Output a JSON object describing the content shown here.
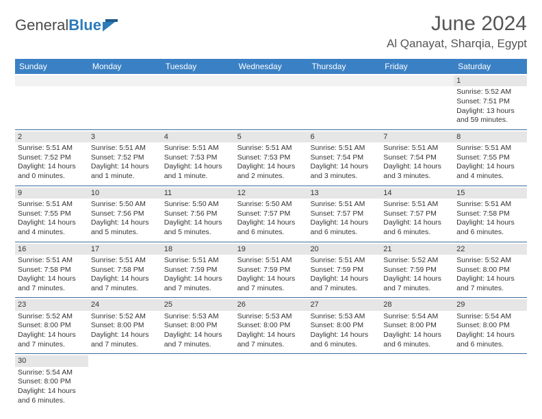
{
  "logo": {
    "text1": "General",
    "text2": "Blue"
  },
  "title": "June 2024",
  "location": "Al Qanayat, Sharqia, Egypt",
  "colors": {
    "header_bg": "#3a80c4",
    "header_text": "#ffffff",
    "daynum_bg": "#e6e6e6",
    "week_border": "#3a6a9a",
    "logo_blue": "#2b7bbb"
  },
  "day_names": [
    "Sunday",
    "Monday",
    "Tuesday",
    "Wednesday",
    "Thursday",
    "Friday",
    "Saturday"
  ],
  "weeks": [
    [
      {
        "n": "",
        "sr": "",
        "ss": "",
        "d1": "",
        "d2": ""
      },
      {
        "n": "",
        "sr": "",
        "ss": "",
        "d1": "",
        "d2": ""
      },
      {
        "n": "",
        "sr": "",
        "ss": "",
        "d1": "",
        "d2": ""
      },
      {
        "n": "",
        "sr": "",
        "ss": "",
        "d1": "",
        "d2": ""
      },
      {
        "n": "",
        "sr": "",
        "ss": "",
        "d1": "",
        "d2": ""
      },
      {
        "n": "",
        "sr": "",
        "ss": "",
        "d1": "",
        "d2": ""
      },
      {
        "n": "1",
        "sr": "Sunrise: 5:52 AM",
        "ss": "Sunset: 7:51 PM",
        "d1": "Daylight: 13 hours",
        "d2": "and 59 minutes."
      }
    ],
    [
      {
        "n": "2",
        "sr": "Sunrise: 5:51 AM",
        "ss": "Sunset: 7:52 PM",
        "d1": "Daylight: 14 hours",
        "d2": "and 0 minutes."
      },
      {
        "n": "3",
        "sr": "Sunrise: 5:51 AM",
        "ss": "Sunset: 7:52 PM",
        "d1": "Daylight: 14 hours",
        "d2": "and 1 minute."
      },
      {
        "n": "4",
        "sr": "Sunrise: 5:51 AM",
        "ss": "Sunset: 7:53 PM",
        "d1": "Daylight: 14 hours",
        "d2": "and 1 minute."
      },
      {
        "n": "5",
        "sr": "Sunrise: 5:51 AM",
        "ss": "Sunset: 7:53 PM",
        "d1": "Daylight: 14 hours",
        "d2": "and 2 minutes."
      },
      {
        "n": "6",
        "sr": "Sunrise: 5:51 AM",
        "ss": "Sunset: 7:54 PM",
        "d1": "Daylight: 14 hours",
        "d2": "and 3 minutes."
      },
      {
        "n": "7",
        "sr": "Sunrise: 5:51 AM",
        "ss": "Sunset: 7:54 PM",
        "d1": "Daylight: 14 hours",
        "d2": "and 3 minutes."
      },
      {
        "n": "8",
        "sr": "Sunrise: 5:51 AM",
        "ss": "Sunset: 7:55 PM",
        "d1": "Daylight: 14 hours",
        "d2": "and 4 minutes."
      }
    ],
    [
      {
        "n": "9",
        "sr": "Sunrise: 5:51 AM",
        "ss": "Sunset: 7:55 PM",
        "d1": "Daylight: 14 hours",
        "d2": "and 4 minutes."
      },
      {
        "n": "10",
        "sr": "Sunrise: 5:50 AM",
        "ss": "Sunset: 7:56 PM",
        "d1": "Daylight: 14 hours",
        "d2": "and 5 minutes."
      },
      {
        "n": "11",
        "sr": "Sunrise: 5:50 AM",
        "ss": "Sunset: 7:56 PM",
        "d1": "Daylight: 14 hours",
        "d2": "and 5 minutes."
      },
      {
        "n": "12",
        "sr": "Sunrise: 5:50 AM",
        "ss": "Sunset: 7:57 PM",
        "d1": "Daylight: 14 hours",
        "d2": "and 6 minutes."
      },
      {
        "n": "13",
        "sr": "Sunrise: 5:51 AM",
        "ss": "Sunset: 7:57 PM",
        "d1": "Daylight: 14 hours",
        "d2": "and 6 minutes."
      },
      {
        "n": "14",
        "sr": "Sunrise: 5:51 AM",
        "ss": "Sunset: 7:57 PM",
        "d1": "Daylight: 14 hours",
        "d2": "and 6 minutes."
      },
      {
        "n": "15",
        "sr": "Sunrise: 5:51 AM",
        "ss": "Sunset: 7:58 PM",
        "d1": "Daylight: 14 hours",
        "d2": "and 6 minutes."
      }
    ],
    [
      {
        "n": "16",
        "sr": "Sunrise: 5:51 AM",
        "ss": "Sunset: 7:58 PM",
        "d1": "Daylight: 14 hours",
        "d2": "and 7 minutes."
      },
      {
        "n": "17",
        "sr": "Sunrise: 5:51 AM",
        "ss": "Sunset: 7:58 PM",
        "d1": "Daylight: 14 hours",
        "d2": "and 7 minutes."
      },
      {
        "n": "18",
        "sr": "Sunrise: 5:51 AM",
        "ss": "Sunset: 7:59 PM",
        "d1": "Daylight: 14 hours",
        "d2": "and 7 minutes."
      },
      {
        "n": "19",
        "sr": "Sunrise: 5:51 AM",
        "ss": "Sunset: 7:59 PM",
        "d1": "Daylight: 14 hours",
        "d2": "and 7 minutes."
      },
      {
        "n": "20",
        "sr": "Sunrise: 5:51 AM",
        "ss": "Sunset: 7:59 PM",
        "d1": "Daylight: 14 hours",
        "d2": "and 7 minutes."
      },
      {
        "n": "21",
        "sr": "Sunrise: 5:52 AM",
        "ss": "Sunset: 7:59 PM",
        "d1": "Daylight: 14 hours",
        "d2": "and 7 minutes."
      },
      {
        "n": "22",
        "sr": "Sunrise: 5:52 AM",
        "ss": "Sunset: 8:00 PM",
        "d1": "Daylight: 14 hours",
        "d2": "and 7 minutes."
      }
    ],
    [
      {
        "n": "23",
        "sr": "Sunrise: 5:52 AM",
        "ss": "Sunset: 8:00 PM",
        "d1": "Daylight: 14 hours",
        "d2": "and 7 minutes."
      },
      {
        "n": "24",
        "sr": "Sunrise: 5:52 AM",
        "ss": "Sunset: 8:00 PM",
        "d1": "Daylight: 14 hours",
        "d2": "and 7 minutes."
      },
      {
        "n": "25",
        "sr": "Sunrise: 5:53 AM",
        "ss": "Sunset: 8:00 PM",
        "d1": "Daylight: 14 hours",
        "d2": "and 7 minutes."
      },
      {
        "n": "26",
        "sr": "Sunrise: 5:53 AM",
        "ss": "Sunset: 8:00 PM",
        "d1": "Daylight: 14 hours",
        "d2": "and 7 minutes."
      },
      {
        "n": "27",
        "sr": "Sunrise: 5:53 AM",
        "ss": "Sunset: 8:00 PM",
        "d1": "Daylight: 14 hours",
        "d2": "and 6 minutes."
      },
      {
        "n": "28",
        "sr": "Sunrise: 5:54 AM",
        "ss": "Sunset: 8:00 PM",
        "d1": "Daylight: 14 hours",
        "d2": "and 6 minutes."
      },
      {
        "n": "29",
        "sr": "Sunrise: 5:54 AM",
        "ss": "Sunset: 8:00 PM",
        "d1": "Daylight: 14 hours",
        "d2": "and 6 minutes."
      }
    ],
    [
      {
        "n": "30",
        "sr": "Sunrise: 5:54 AM",
        "ss": "Sunset: 8:00 PM",
        "d1": "Daylight: 14 hours",
        "d2": "and 6 minutes."
      },
      {
        "n": "",
        "sr": "",
        "ss": "",
        "d1": "",
        "d2": ""
      },
      {
        "n": "",
        "sr": "",
        "ss": "",
        "d1": "",
        "d2": ""
      },
      {
        "n": "",
        "sr": "",
        "ss": "",
        "d1": "",
        "d2": ""
      },
      {
        "n": "",
        "sr": "",
        "ss": "",
        "d1": "",
        "d2": ""
      },
      {
        "n": "",
        "sr": "",
        "ss": "",
        "d1": "",
        "d2": ""
      },
      {
        "n": "",
        "sr": "",
        "ss": "",
        "d1": "",
        "d2": ""
      }
    ]
  ]
}
